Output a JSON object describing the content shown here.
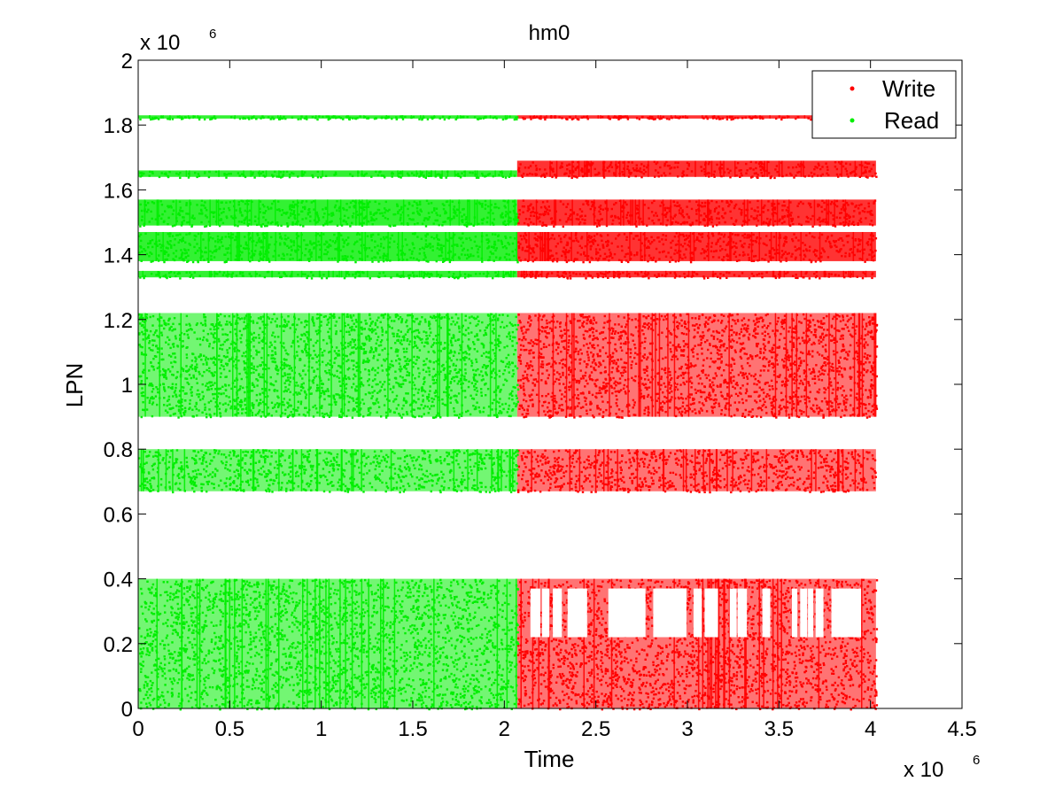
{
  "chart_data": {
    "type": "scatter",
    "title": "hm0",
    "xlabel": "Time",
    "ylabel": "LPN",
    "x_exponent_label": "x 10",
    "x_exponent": "6",
    "y_exponent_label": "x 10",
    "y_exponent": "6",
    "xlim": [
      0,
      4.5
    ],
    "ylim": [
      0,
      2
    ],
    "xticks": [
      0,
      0.5,
      1,
      1.5,
      2,
      2.5,
      3,
      3.5,
      4,
      4.5
    ],
    "xtick_labels": [
      "0",
      "0.5",
      "1",
      "1.5",
      "2",
      "2.5",
      "3",
      "3.5",
      "4",
      "4.5"
    ],
    "yticks": [
      0,
      0.2,
      0.4,
      0.6,
      0.8,
      1,
      1.2,
      1.4,
      1.6,
      1.8,
      2
    ],
    "ytick_labels": [
      "0",
      "0.2",
      "0.4",
      "0.6",
      "0.8",
      "1",
      "1.2",
      "1.4",
      "1.6",
      "1.8",
      "2"
    ],
    "grid": false,
    "legend_position": "top-right",
    "units_note": "x and y values in units of 10^6",
    "series": [
      {
        "name": "Write",
        "color": "#ff0000",
        "marker": "dot",
        "x_range": [
          0,
          4.03
        ],
        "clusters": [
          {
            "x": [
              2.07,
              4.03
            ],
            "y": [
              0.0,
              0.4
            ]
          },
          {
            "x": [
              2.07,
              4.03
            ],
            "y": [
              0.67,
              0.8
            ]
          },
          {
            "x": [
              2.07,
              4.03
            ],
            "y": [
              0.9,
              1.22
            ]
          },
          {
            "x": [
              2.07,
              4.03
            ],
            "y": [
              1.33,
              1.35
            ]
          },
          {
            "x": [
              2.07,
              4.03
            ],
            "y": [
              1.38,
              1.47
            ]
          },
          {
            "x": [
              2.07,
              4.03
            ],
            "y": [
              1.49,
              1.57
            ]
          },
          {
            "x": [
              2.07,
              4.03
            ],
            "y": [
              1.64,
              1.69
            ]
          },
          {
            "x": [
              2.07,
              4.03
            ],
            "y": [
              1.82,
              1.83
            ]
          }
        ]
      },
      {
        "name": "Read",
        "color": "#00ee00",
        "marker": "dot",
        "x_range": [
          0,
          2.07
        ],
        "clusters": [
          {
            "x": [
              0,
              2.07
            ],
            "y": [
              0.0,
              0.4
            ]
          },
          {
            "x": [
              0,
              2.07
            ],
            "y": [
              0.67,
              0.8
            ]
          },
          {
            "x": [
              0,
              2.07
            ],
            "y": [
              0.9,
              1.22
            ]
          },
          {
            "x": [
              0,
              2.07
            ],
            "y": [
              1.33,
              1.35
            ]
          },
          {
            "x": [
              0,
              2.07
            ],
            "y": [
              1.38,
              1.47
            ]
          },
          {
            "x": [
              0,
              2.07
            ],
            "y": [
              1.49,
              1.57
            ]
          },
          {
            "x": [
              0,
              2.07
            ],
            "y": [
              1.64,
              1.66
            ]
          },
          {
            "x": [
              0,
              2.07
            ],
            "y": [
              1.82,
              1.83
            ]
          }
        ]
      }
    ]
  }
}
